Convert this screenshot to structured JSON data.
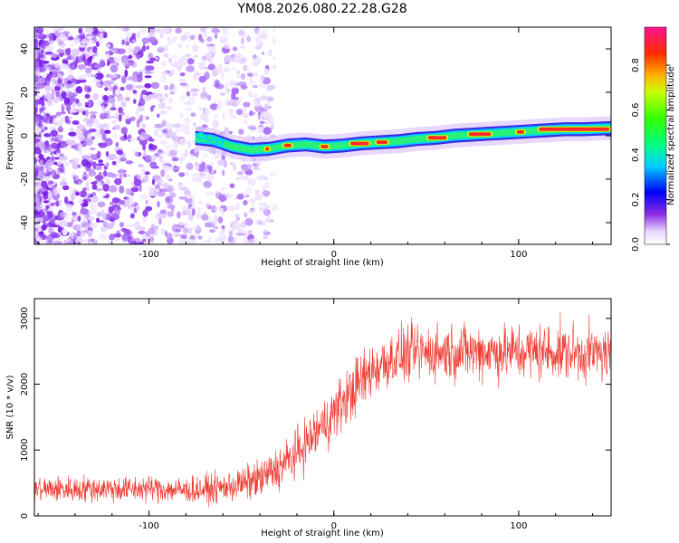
{
  "title": "YM08.2026.080.22.28.G28",
  "chart_data": [
    {
      "type": "heatmap",
      "name": "spectrogram",
      "xlabel": "Height of straight line (km)",
      "ylabel": "Frequency (Hz)",
      "xlim": [
        -162,
        150
      ],
      "ylim": [
        -50,
        50
      ],
      "x_ticks": [
        -100,
        0,
        100
      ],
      "y_ticks": [
        -40,
        -20,
        0,
        20,
        40
      ],
      "x_tick_labels": [
        "-100",
        "0",
        "100"
      ],
      "y_tick_labels": [
        "-40",
        "-20",
        "0",
        "20",
        "40"
      ],
      "noise_region_x": [
        -162,
        -40
      ],
      "signal_track": {
        "x": [
          -75,
          -65,
          -55,
          -45,
          -35,
          -25,
          -15,
          -5,
          5,
          15,
          25,
          35,
          45,
          55,
          65,
          75,
          85,
          95,
          105,
          115,
          125,
          135,
          150
        ],
        "freq": [
          -1,
          -2,
          -5,
          -6.5,
          -6,
          -4.5,
          -4,
          -5,
          -4.5,
          -3.5,
          -3,
          -2.5,
          -1.5,
          -1,
          0,
          0.5,
          1,
          1.5,
          2,
          2.5,
          3,
          3,
          3.5
        ]
      },
      "colorbar": {
        "label": "Normalized spectral amplitude",
        "range": [
          0.0,
          0.97
        ],
        "ticks": [
          0.0,
          0.2,
          0.4,
          0.6,
          0.8
        ],
        "tick_labels": [
          "0.0",
          "0.2",
          "0.4",
          "0.6",
          "0.8"
        ]
      }
    },
    {
      "type": "line",
      "name": "snr",
      "xlabel": "Height of straight line (km)",
      "ylabel": "SNR (10 * v/v)",
      "xlim": [
        -162,
        150
      ],
      "ylim": [
        0,
        3300
      ],
      "x_ticks": [
        -100,
        0,
        100
      ],
      "y_ticks": [
        0,
        1000,
        2000,
        3000
      ],
      "x_tick_labels": [
        "-100",
        "0",
        "100"
      ],
      "y_tick_labels": [
        "0",
        "1000",
        "2000",
        "3000"
      ],
      "color": "#ef3b32",
      "series": [
        {
          "name": "SNR",
          "x": [
            -162,
            -150,
            -140,
            -130,
            -120,
            -110,
            -100,
            -90,
            -80,
            -70,
            -60,
            -50,
            -40,
            -30,
            -20,
            -10,
            0,
            10,
            20,
            30,
            40,
            50,
            60,
            70,
            80,
            90,
            100,
            110,
            120,
            130,
            140,
            150
          ],
          "values": [
            400,
            410,
            400,
            420,
            410,
            400,
            420,
            400,
            390,
            400,
            430,
            480,
            560,
            720,
            950,
            1250,
            1560,
            1900,
            2200,
            2380,
            2460,
            2480,
            2490,
            2500,
            2500,
            2480,
            2490,
            2500,
            2490,
            2480,
            2470,
            2460
          ],
          "noise_amplitude": [
            180,
            180,
            180,
            180,
            180,
            180,
            180,
            180,
            180,
            190,
            200,
            230,
            260,
            300,
            330,
            360,
            380,
            400,
            400,
            390,
            380,
            380,
            380,
            380,
            380,
            390,
            390,
            390,
            380,
            380,
            370,
            360
          ]
        }
      ]
    }
  ]
}
